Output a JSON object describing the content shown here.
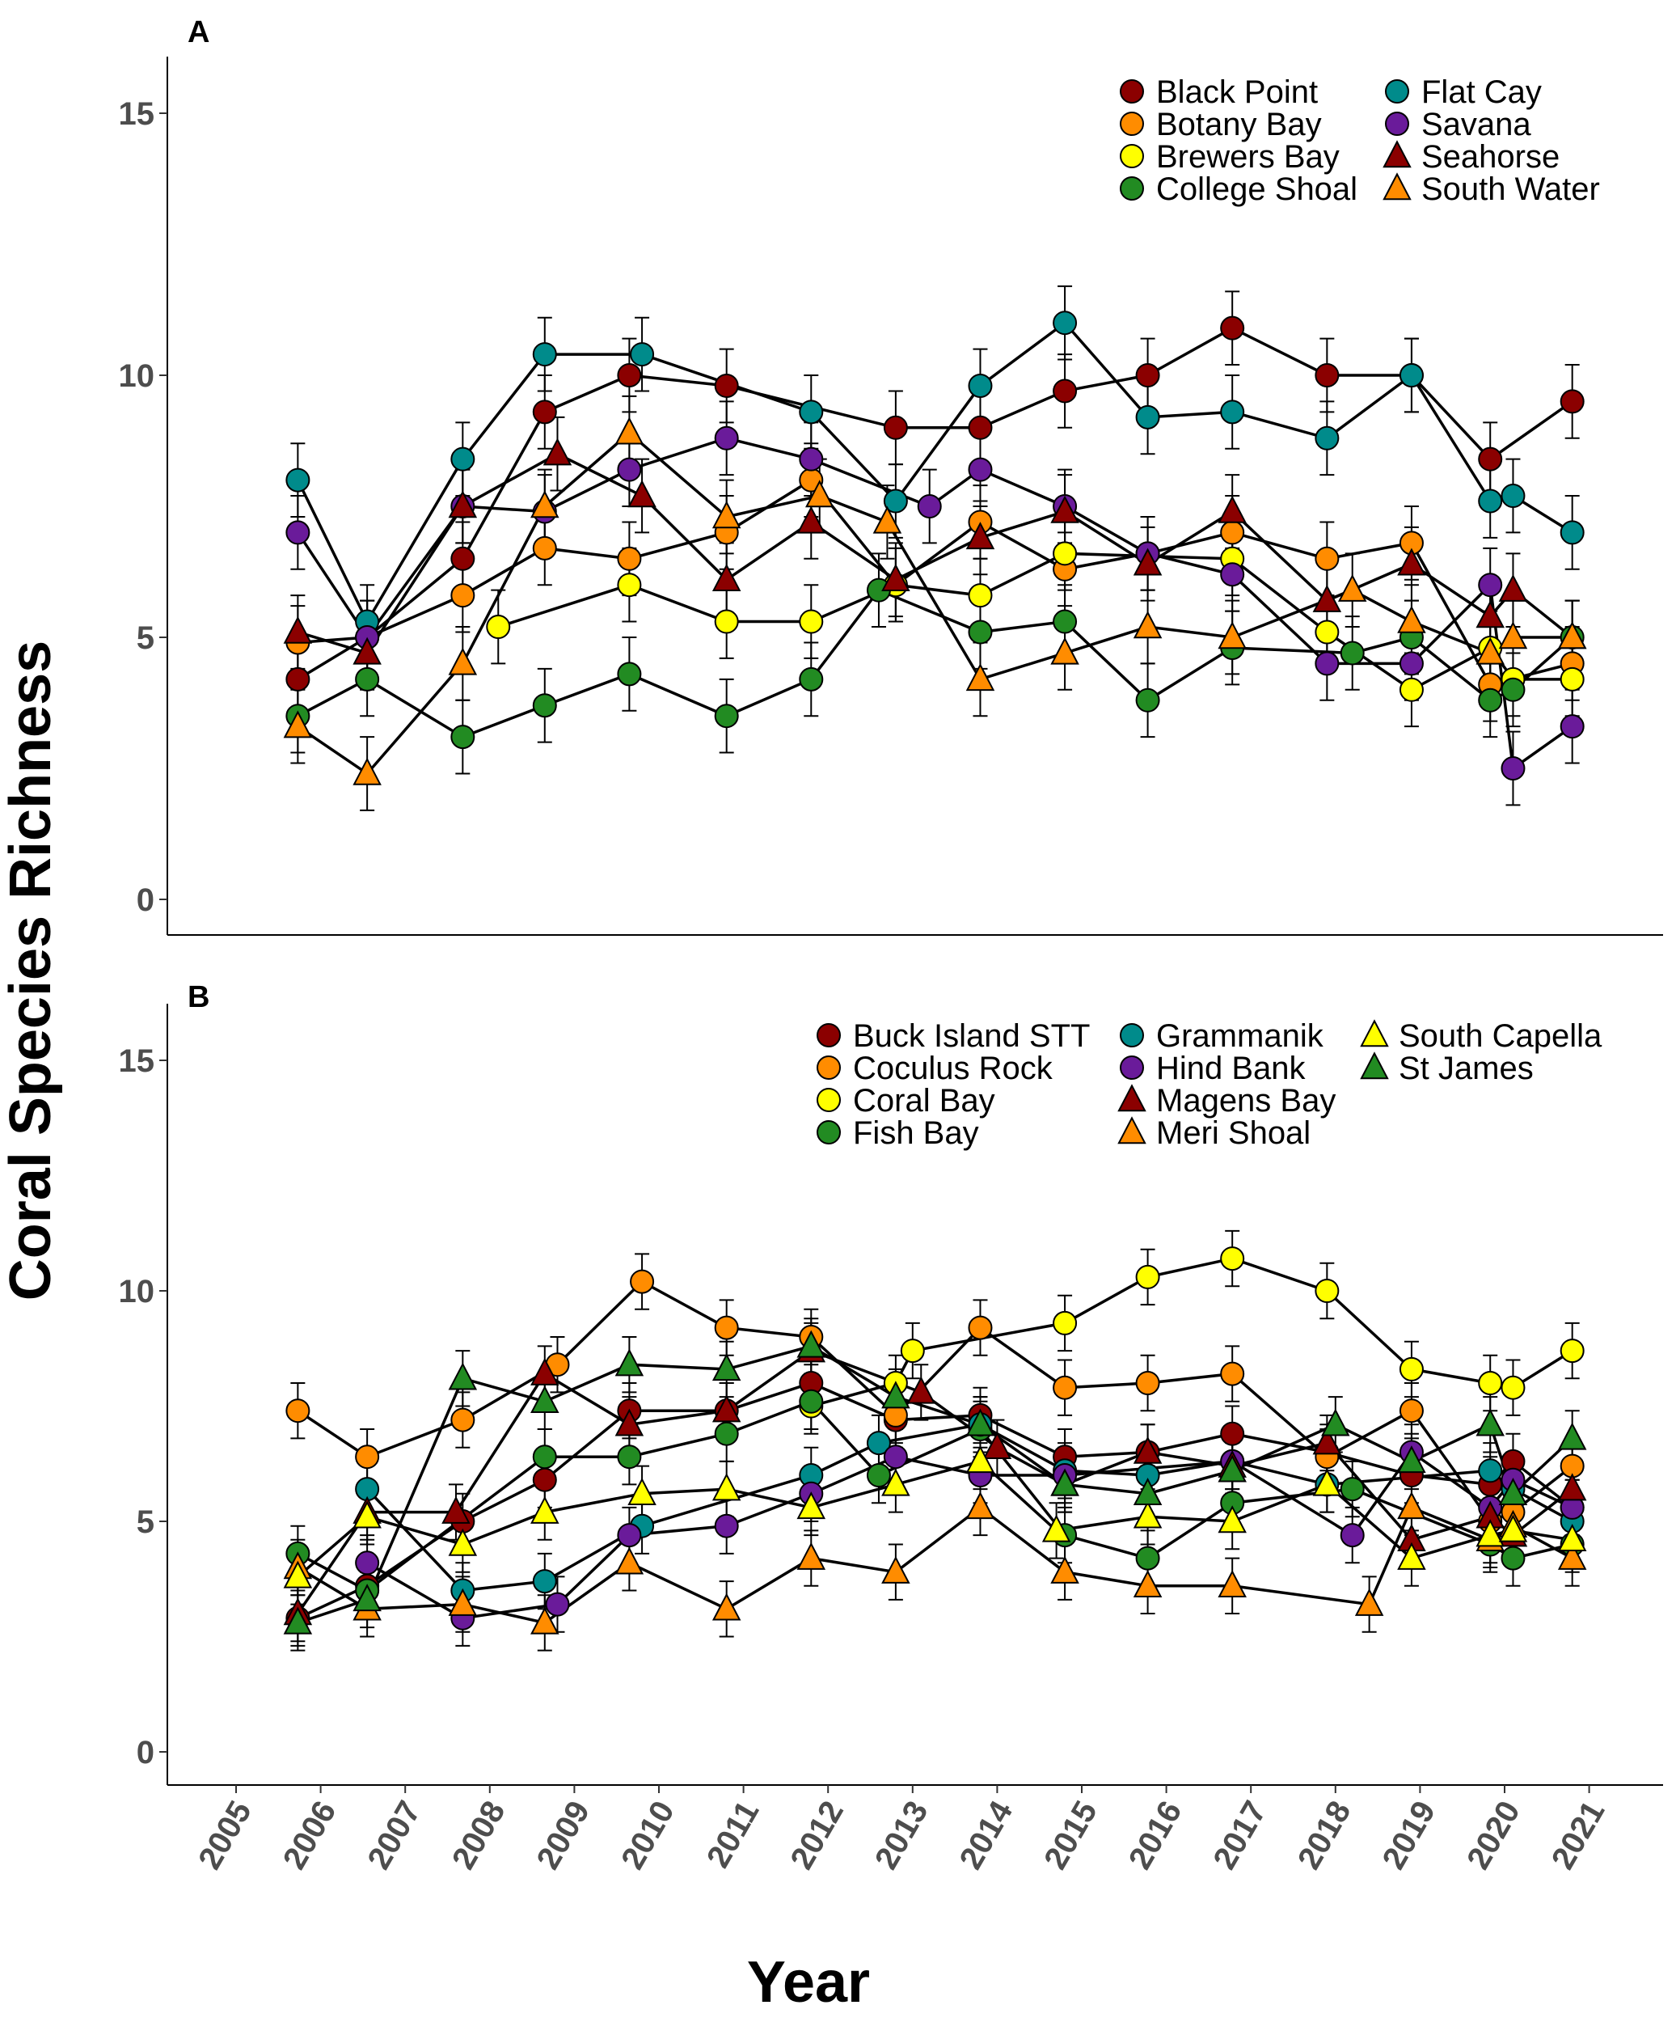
{
  "chart_data": [
    {
      "type": "line",
      "panel_label": "A",
      "ylabel": "Coral Species Richness",
      "xlabel": "Year",
      "ylim": [
        0,
        15
      ],
      "yticks": [
        0,
        5,
        10,
        15
      ],
      "xlim": [
        2005,
        2021
      ],
      "grid": false,
      "legend_position": "top-right",
      "legend_columns": 2,
      "error_bar_approx": 0.7,
      "series": [
        {
          "name": "Black Point",
          "shape": "circle",
          "color": "#8B0000",
          "x": [
            2005.73,
            2006.55,
            2007.68,
            2008.65,
            2009.65,
            2010.8,
            2012.8,
            2013.8,
            2014.8,
            2015.78,
            2016.78,
            2017.9,
            2018.9,
            2019.83,
            2020.8
          ],
          "y": [
            4.2,
            5.0,
            6.5,
            9.3,
            10.0,
            9.8,
            9.0,
            9.0,
            9.7,
            10.0,
            10.9,
            10.0,
            10.0,
            8.4,
            9.5
          ]
        },
        {
          "name": "Botany Bay",
          "shape": "circle",
          "color": "#FF8C00",
          "x": [
            2005.73,
            2006.55,
            2007.68,
            2008.65,
            2009.65,
            2010.8,
            2011.8,
            2012.8,
            2013.8,
            2014.8,
            2015.78,
            2016.78,
            2017.9,
            2018.9,
            2019.83,
            2020.8
          ],
          "y": [
            4.9,
            5.0,
            5.8,
            6.7,
            6.5,
            7.0,
            8.0,
            6.0,
            7.2,
            6.3,
            6.6,
            7.0,
            6.5,
            6.8,
            4.1,
            4.5
          ]
        },
        {
          "name": "Brewers Bay",
          "shape": "circle",
          "color": "#FFFF00",
          "x": [
            2008.1,
            2009.65,
            2010.8,
            2011.8,
            2012.8,
            2013.8,
            2014.8,
            2016.78,
            2017.9,
            2018.9,
            2019.83,
            2020.1,
            2020.8
          ],
          "y": [
            5.2,
            6.0,
            5.3,
            5.3,
            6.0,
            5.8,
            6.6,
            6.5,
            5.1,
            4.0,
            4.8,
            4.2,
            4.2
          ]
        },
        {
          "name": "College Shoal",
          "shape": "circle",
          "color": "#228B22",
          "x": [
            2005.73,
            2006.55,
            2007.68,
            2008.65,
            2009.65,
            2010.8,
            2011.8,
            2012.6,
            2013.8,
            2014.8,
            2015.78,
            2016.78,
            2018.2,
            2018.9,
            2019.83,
            2020.1,
            2020.8
          ],
          "y": [
            3.5,
            4.2,
            3.1,
            3.7,
            4.3,
            3.5,
            4.2,
            5.9,
            5.1,
            5.3,
            3.8,
            4.8,
            4.7,
            5.0,
            3.8,
            4.0,
            5.0
          ]
        },
        {
          "name": "Flat Cay",
          "shape": "circle",
          "color": "#008B8B",
          "x": [
            2005.73,
            2006.55,
            2007.68,
            2008.65,
            2009.8,
            2011.8,
            2012.8,
            2013.8,
            2014.8,
            2015.78,
            2016.78,
            2017.9,
            2018.9,
            2019.83,
            2020.1,
            2020.8
          ],
          "y": [
            8.0,
            5.3,
            8.4,
            10.4,
            10.4,
            9.3,
            7.6,
            9.8,
            11.0,
            9.2,
            9.3,
            8.8,
            10.0,
            7.6,
            7.7,
            7.0
          ]
        },
        {
          "name": "Savana",
          "shape": "circle",
          "color": "#6A1B9A",
          "x": [
            2005.73,
            2006.55,
            2007.68,
            2008.65,
            2009.65,
            2010.8,
            2011.8,
            2013.2,
            2013.8,
            2014.8,
            2015.78,
            2016.78,
            2017.9,
            2018.9,
            2019.83,
            2020.1,
            2020.8
          ],
          "y": [
            7.0,
            5.0,
            7.5,
            7.4,
            8.2,
            8.8,
            8.4,
            7.5,
            8.2,
            7.5,
            6.6,
            6.2,
            4.5,
            4.5,
            6.0,
            2.5,
            3.3
          ]
        },
        {
          "name": "Seahorse",
          "shape": "triangle",
          "color": "#8B0000",
          "x": [
            2005.73,
            2006.55,
            2007.68,
            2008.8,
            2009.8,
            2010.8,
            2011.8,
            2012.8,
            2013.8,
            2014.8,
            2015.78,
            2016.78,
            2017.9,
            2018.9,
            2019.83,
            2020.1,
            2020.8
          ],
          "y": [
            5.1,
            4.7,
            7.5,
            8.5,
            7.7,
            6.1,
            7.2,
            6.1,
            6.9,
            7.4,
            6.4,
            7.4,
            5.7,
            6.4,
            5.4,
            5.9,
            5.0
          ]
        },
        {
          "name": "South Water",
          "shape": "triangle",
          "color": "#FF8C00",
          "x": [
            2005.73,
            2006.55,
            2007.68,
            2008.65,
            2009.65,
            2010.8,
            2011.9,
            2012.7,
            2013.8,
            2014.8,
            2015.78,
            2016.78,
            2018.2,
            2018.9,
            2019.83,
            2020.1,
            2020.8
          ],
          "y": [
            3.3,
            2.4,
            4.5,
            7.5,
            8.9,
            7.3,
            7.7,
            7.2,
            4.2,
            4.7,
            5.2,
            5.0,
            5.9,
            5.3,
            4.7,
            5.0,
            5.0
          ]
        }
      ]
    },
    {
      "type": "line",
      "panel_label": "B",
      "ylabel": "Coral Species Richness",
      "xlabel": "Year",
      "ylim": [
        0,
        15
      ],
      "yticks": [
        0,
        5,
        10,
        15
      ],
      "xlim": [
        2005,
        2021
      ],
      "xticks": [
        2005,
        2006,
        2007,
        2008,
        2009,
        2010,
        2011,
        2012,
        2013,
        2014,
        2015,
        2016,
        2017,
        2018,
        2019,
        2020,
        2021
      ],
      "grid": false,
      "legend_position": "top-right",
      "legend_columns": 3,
      "error_bar_approx": 0.6,
      "series": [
        {
          "name": "Buck Island STT",
          "shape": "circle",
          "color": "#8B0000",
          "x": [
            2005.73,
            2006.55,
            2007.68,
            2008.65,
            2009.65,
            2010.8,
            2011.8,
            2012.8,
            2013.8,
            2014.8,
            2015.78,
            2016.78,
            2017.9,
            2018.9,
            2019.83,
            2020.1,
            2020.8
          ],
          "y": [
            2.9,
            3.6,
            5.0,
            5.9,
            7.4,
            7.4,
            8.0,
            7.2,
            7.3,
            6.4,
            6.5,
            6.9,
            6.5,
            6.0,
            5.8,
            6.3,
            5.3
          ]
        },
        {
          "name": "Coculus Rock",
          "shape": "circle",
          "color": "#FF8C00",
          "x": [
            2005.73,
            2006.55,
            2007.68,
            2008.8,
            2009.8,
            2010.8,
            2011.8,
            2012.8,
            2013.8,
            2014.8,
            2015.78,
            2016.78,
            2017.9,
            2018.9,
            2019.83,
            2020.1,
            2020.8
          ],
          "y": [
            7.4,
            6.4,
            7.2,
            8.4,
            10.2,
            9.2,
            9.0,
            7.3,
            9.2,
            7.9,
            8.0,
            8.2,
            6.4,
            7.4,
            5.0,
            5.2,
            6.2
          ]
        },
        {
          "name": "Coral Bay",
          "shape": "circle",
          "color": "#FFFF00",
          "x": [
            2011.8,
            2012.8,
            2013.0,
            2014.8,
            2015.78,
            2016.78,
            2017.9,
            2018.9,
            2019.83,
            2020.1,
            2020.8
          ],
          "y": [
            7.5,
            8.0,
            8.7,
            9.3,
            10.3,
            10.7,
            10.0,
            8.3,
            8.0,
            7.9,
            8.7
          ]
        },
        {
          "name": "Fish Bay",
          "shape": "circle",
          "color": "#228B22",
          "x": [
            2005.73,
            2006.55,
            2008.65,
            2009.65,
            2010.8,
            2011.8,
            2012.6,
            2013.8,
            2014.8,
            2015.78,
            2016.78,
            2018.2,
            2019.83,
            2020.1,
            2020.8
          ],
          "y": [
            4.3,
            3.5,
            6.4,
            6.4,
            6.9,
            7.6,
            6.0,
            7.0,
            4.7,
            4.2,
            5.4,
            5.7,
            4.5,
            4.2,
            4.5
          ]
        },
        {
          "name": "Grammanik",
          "shape": "circle",
          "color": "#008B8B",
          "x": [
            2006.55,
            2007.68,
            2008.65,
            2009.8,
            2011.8,
            2012.6,
            2013.8,
            2014.8,
            2015.78,
            2016.78,
            2017.9,
            2019.83,
            2020.1,
            2020.8
          ],
          "y": [
            5.7,
            3.5,
            3.7,
            4.9,
            6.0,
            6.7,
            7.1,
            6.1,
            6.0,
            6.3,
            5.8,
            6.1,
            5.7,
            5.0
          ]
        },
        {
          "name": "Hind Bank",
          "shape": "circle",
          "color": "#6A1B9A",
          "x": [
            2006.55,
            2007.68,
            2008.8,
            2009.65,
            2010.8,
            2011.8,
            2012.8,
            2013.8,
            2014.8,
            2016.78,
            2018.2,
            2018.9,
            2019.83,
            2020.1,
            2020.8
          ],
          "y": [
            4.1,
            2.9,
            3.2,
            4.7,
            4.9,
            5.6,
            6.4,
            6.0,
            6.0,
            6.3,
            4.7,
            6.5,
            5.3,
            5.9,
            5.3
          ]
        },
        {
          "name": "Magens Bay",
          "shape": "triangle",
          "color": "#8B0000",
          "x": [
            2005.73,
            2006.55,
            2007.6,
            2008.65,
            2009.65,
            2010.8,
            2011.8,
            2013.1,
            2014.0,
            2014.8,
            2015.78,
            2016.78,
            2017.9,
            2018.9,
            2019.83,
            2020.1,
            2020.8
          ],
          "y": [
            3.0,
            5.2,
            5.2,
            8.2,
            7.1,
            7.4,
            8.7,
            7.8,
            6.6,
            5.8,
            6.5,
            6.2,
            6.7,
            4.6,
            5.1,
            4.7,
            5.7
          ]
        },
        {
          "name": "Meri Shoal",
          "shape": "triangle",
          "color": "#FF8C00",
          "x": [
            2005.73,
            2006.55,
            2007.68,
            2008.65,
            2009.65,
            2010.8,
            2011.8,
            2012.8,
            2013.8,
            2014.8,
            2015.78,
            2016.78,
            2018.4,
            2018.9,
            2019.83,
            2020.1,
            2020.8
          ],
          "y": [
            4.0,
            3.1,
            3.2,
            2.8,
            4.1,
            3.1,
            4.2,
            3.9,
            5.3,
            3.9,
            3.6,
            3.6,
            3.2,
            5.3,
            4.6,
            4.9,
            4.2
          ]
        },
        {
          "name": "South Capella",
          "shape": "triangle",
          "color": "#FFFF00",
          "x": [
            2005.73,
            2006.55,
            2007.68,
            2008.65,
            2009.8,
            2010.8,
            2011.8,
            2012.8,
            2013.8,
            2014.7,
            2015.78,
            2016.78,
            2017.9,
            2018.9,
            2019.83,
            2020.1,
            2020.8
          ],
          "y": [
            3.8,
            5.1,
            4.5,
            5.2,
            5.6,
            5.7,
            5.3,
            5.8,
            6.3,
            4.8,
            5.1,
            5.0,
            5.8,
            4.2,
            4.7,
            4.8,
            4.6
          ]
        },
        {
          "name": "St James",
          "shape": "triangle",
          "color": "#228B22",
          "x": [
            2005.73,
            2006.55,
            2007.68,
            2008.65,
            2009.65,
            2010.8,
            2011.8,
            2012.8,
            2013.8,
            2014.8,
            2015.78,
            2016.78,
            2018.0,
            2018.9,
            2019.83,
            2020.1,
            2020.8
          ],
          "y": [
            2.8,
            3.3,
            8.1,
            7.6,
            8.4,
            8.3,
            8.8,
            7.7,
            7.1,
            5.8,
            5.6,
            6.1,
            7.1,
            6.3,
            7.1,
            5.6,
            6.8
          ]
        }
      ]
    }
  ]
}
